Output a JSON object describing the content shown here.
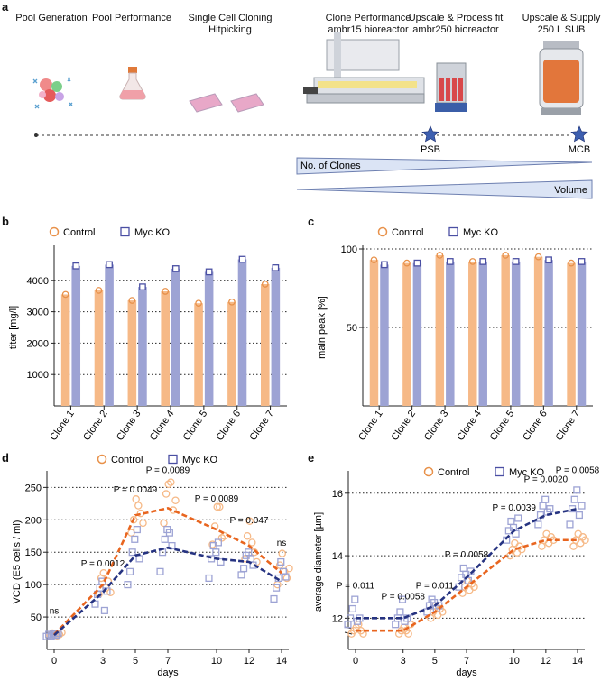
{
  "colors": {
    "control": "#f6b987",
    "control_edge": "#e8914a",
    "myc": "#9da3d4",
    "myc_edge": "#4a4fa3",
    "control_line": "#e8651f",
    "myc_line": "#263381"
  },
  "panel_a": {
    "letter": "a",
    "stages": [
      {
        "title": "Pool Generation",
        "subtitle": "",
        "icon": "cells-icon"
      },
      {
        "title": "Pool Performance",
        "subtitle": "",
        "icon": "flask-icon"
      },
      {
        "title": "Single Cell Cloning",
        "subtitle": "Hitpicking",
        "icon": "plates-icon"
      },
      {
        "title": "Clone Performance",
        "subtitle": "ambr15 bioreactor",
        "icon": "ambr15-icon"
      },
      {
        "title": "Upscale & Process fit",
        "subtitle": "ambr250 bioreactor",
        "icon": "ambr250-icon"
      },
      {
        "title": "Upscale & Supply",
        "subtitle": "250 L SUB",
        "icon": "sub-icon"
      }
    ],
    "milestones": [
      "PSB",
      "MCB"
    ],
    "clones_label": "No. of Clones",
    "volume_label": "Volume"
  },
  "chart_data": [
    {
      "panel": "b",
      "type": "bar",
      "legend": [
        "Control",
        "Myc KO"
      ],
      "categories": [
        "Clone 1",
        "Clone 2",
        "Clone 3",
        "Clone 4",
        "Clone 5",
        "Clone 6",
        "Clone 7"
      ],
      "series": [
        {
          "name": "Control",
          "values": [
            3550,
            3680,
            3360,
            3650,
            3270,
            3310,
            3880
          ]
        },
        {
          "name": "Myc KO",
          "values": [
            4460,
            4500,
            3790,
            4370,
            4270,
            4670,
            4400
          ]
        }
      ],
      "ylabel": "titer [mg/l]",
      "ylim": [
        0,
        5000
      ],
      "yticks": [
        1000,
        2000,
        3000,
        4000
      ],
      "ytick_labels": [
        "1000",
        "2000",
        "3000",
        "4000"
      ]
    },
    {
      "panel": "c",
      "type": "bar",
      "legend": [
        "Control",
        "Myc KO"
      ],
      "categories": [
        "Clone 1",
        "Clone 2",
        "Clone 3",
        "Clone 4",
        "Clone 5",
        "Clone 6",
        "Clone 7"
      ],
      "series": [
        {
          "name": "Control",
          "values": [
            93,
            91,
            96,
            92,
            96,
            95,
            91
          ]
        },
        {
          "name": "Myc KO",
          "values": [
            90,
            91,
            92,
            92,
            92,
            93,
            92
          ]
        }
      ],
      "ylabel": "main peak [%]",
      "ylim": [
        0,
        100
      ],
      "yticks": [
        50,
        100
      ],
      "ytick_labels": [
        "50",
        "100"
      ]
    },
    {
      "panel": "d",
      "type": "scatter+line",
      "legend": [
        "Control",
        "Myc KO"
      ],
      "x": [
        0,
        3,
        5,
        7,
        10,
        12,
        14
      ],
      "xticks": [
        "0",
        "3",
        "5",
        "7",
        "10",
        "12",
        "14"
      ],
      "series": [
        {
          "name": "Control",
          "mean": [
            23,
            100,
            207,
            218,
            185,
            160,
            118
          ],
          "points": [
            [
              22,
              25,
              24,
              21,
              23,
              26
            ],
            [
              85,
              110,
              118,
              95,
              105,
              88
            ],
            [
              180,
              200,
              232,
              222,
              210,
              195
            ],
            [
              195,
              240,
              255,
              258,
              215,
              230
            ],
            [
              162,
              190,
              220,
              220,
              172,
              175
            ],
            [
              140,
              175,
              198,
              165,
              150,
              135
            ],
            [
              100,
              130,
              148,
              120,
              110,
              125
            ]
          ]
        },
        {
          "name": "Myc KO",
          "mean": [
            22,
            88,
            145,
            157,
            140,
            135,
            105
          ],
          "points": [
            [
              20,
              23,
              21,
              24,
              22,
              25
            ],
            [
              70,
              85,
              95,
              105,
              60,
              90
            ],
            [
              100,
              120,
              150,
              170,
              185,
              140
            ],
            [
              120,
              150,
              170,
              185,
              180,
              160
            ],
            [
              110,
              140,
              160,
              150,
              165,
              135
            ],
            [
              115,
              125,
              145,
              150,
              140,
              130
            ],
            [
              78,
              95,
              110,
              135,
              120,
              112
            ]
          ]
        }
      ],
      "pvalues": [
        {
          "x": 0,
          "y": 55,
          "label": "ns"
        },
        {
          "x": 3,
          "y": 128,
          "label": "P = 0.0012"
        },
        {
          "x": 5,
          "y": 242,
          "label": "P = 0.0049"
        },
        {
          "x": 7,
          "y": 272,
          "label": "P = 0.0089"
        },
        {
          "x": 10,
          "y": 228,
          "label": "P = 0.0089"
        },
        {
          "x": 12,
          "y": 195,
          "label": "P = 0.047"
        },
        {
          "x": 14,
          "y": 160,
          "label": "ns"
        }
      ],
      "xlabel": "days",
      "ylabel": "VCD (E5 cells / ml)",
      "ylim": [
        0,
        270
      ],
      "yticks": [
        50,
        100,
        150,
        200,
        250
      ],
      "ytick_labels": [
        "50",
        "100",
        "150",
        "200",
        "250"
      ]
    },
    {
      "panel": "e",
      "type": "scatter+line",
      "legend": [
        "Control",
        "Myc KO"
      ],
      "x": [
        0,
        3,
        5,
        7,
        10,
        12,
        14
      ],
      "xticks": [
        "0",
        "3",
        "5",
        "7",
        "10",
        "12",
        "14"
      ],
      "series": [
        {
          "name": "Control",
          "mean": [
            11.6,
            11.6,
            12.2,
            13.0,
            14.2,
            14.5,
            14.5
          ],
          "points": [
            [
              11.5,
              11.6,
              11.7,
              11.8,
              11.6,
              11.5
            ],
            [
              11.5,
              11.6,
              11.7,
              11.6,
              11.5,
              11.8
            ],
            [
              12.0,
              12.2,
              12.4,
              12.1,
              12.3,
              12.2
            ],
            [
              12.8,
              13.0,
              13.2,
              12.9,
              13.1,
              13.0
            ],
            [
              14.0,
              14.2,
              14.4,
              14.1,
              14.3,
              14.2
            ],
            [
              14.3,
              14.5,
              14.7,
              14.4,
              14.6,
              14.5
            ],
            [
              14.3,
              14.5,
              14.7,
              14.4,
              14.6,
              14.5
            ]
          ]
        },
        {
          "name": "Myc KO",
          "mean": [
            12.0,
            12.0,
            12.4,
            13.3,
            14.8,
            15.3,
            15.5
          ],
          "points": [
            [
              11.8,
              12.0,
              12.3,
              12.6,
              11.9,
              12.0
            ],
            [
              11.8,
              12.0,
              12.2,
              12.6,
              11.9,
              12.0
            ],
            [
              12.2,
              12.4,
              12.6,
              12.5,
              12.3,
              12.4
            ],
            [
              13.0,
              13.3,
              13.6,
              13.4,
              13.2,
              13.5
            ],
            [
              14.5,
              14.8,
              15.1,
              14.9,
              14.7,
              15.2
            ],
            [
              15.0,
              15.3,
              15.6,
              15.8,
              15.4,
              15.5
            ],
            [
              15.0,
              15.5,
              15.8,
              16.1,
              15.3,
              15.6
            ]
          ]
        }
      ],
      "pvalues": [
        {
          "x": 0,
          "y": 12.95,
          "label": "P = 0.011"
        },
        {
          "x": 3,
          "y": 12.6,
          "label": "P = 0.0058"
        },
        {
          "x": 5,
          "y": 12.95,
          "label": "P = 0.011"
        },
        {
          "x": 7,
          "y": 13.95,
          "label": "P = 0.0058"
        },
        {
          "x": 10,
          "y": 15.45,
          "label": "P = 0.0039"
        },
        {
          "x": 12,
          "y": 16.35,
          "label": "P = 0.0020"
        },
        {
          "x": 14,
          "y": 16.65,
          "label": "P = 0.0058"
        }
      ],
      "xlabel": "days",
      "ylabel": "average diameter [µm]",
      "ylim": [
        11,
        16.6
      ],
      "yticks": [
        12,
        14,
        16
      ],
      "ytick_labels": [
        "12",
        "14",
        "16"
      ],
      "axis_break": true
    }
  ]
}
